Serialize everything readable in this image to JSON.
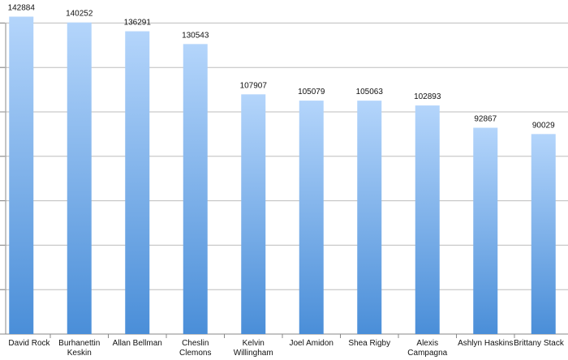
{
  "chart_data": {
    "type": "bar",
    "categories": [
      "David Rock",
      "Burhanettin Keskin",
      "Allan Bellman",
      "Cheslin Clemons",
      "Kelvin Willingham",
      "Joel Amidon",
      "Shea Rigby",
      "Alexis Campagna",
      "Ashlyn Haskins",
      "Brittany Stack"
    ],
    "values": [
      142884,
      140252,
      136291,
      130543,
      107907,
      105079,
      105063,
      102893,
      92867,
      90029
    ],
    "color": "#4a8ed8",
    "ylim": [
      0,
      150000
    ],
    "yticks": [
      0,
      20000,
      40000,
      60000,
      80000,
      100000,
      120000,
      140000
    ],
    "grid": true
  }
}
